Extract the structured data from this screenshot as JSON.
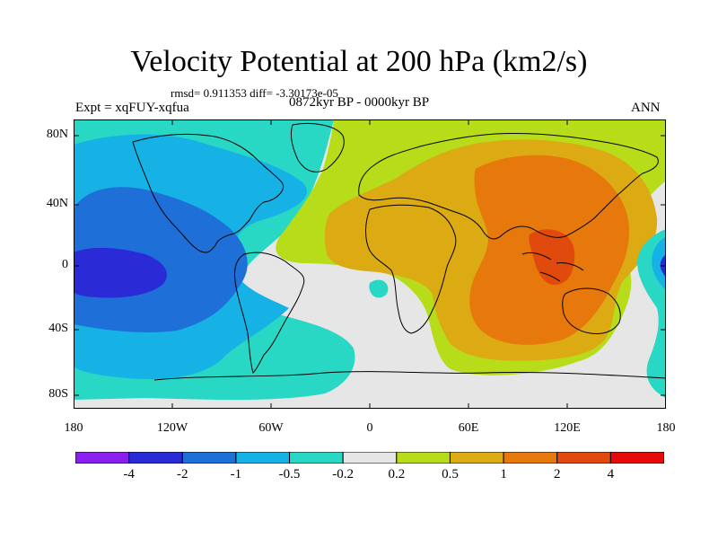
{
  "title": "Velocity Potential at 200 hPa (km2/s)",
  "stats_text": "rmsd= 0.911353 diff= -3.30173e-05",
  "experiment": "Expt = xqFUY-xqfua",
  "period": "0872kyr BP - 0000kyr BP",
  "season": "ANN",
  "y_axis_labels": [
    "80N",
    "40N",
    "0",
    "40S",
    "80S"
  ],
  "x_axis_labels": [
    "180",
    "120W",
    "60W",
    "0",
    "60E",
    "120E",
    "180"
  ],
  "colorbar": {
    "levels": [
      "-4",
      "-2",
      "-1",
      "-0.5",
      "-0.2",
      "0.2",
      "0.5",
      "1",
      "2",
      "4"
    ],
    "colors": [
      "#8a1ff0",
      "#2a2ad6",
      "#1e6fd8",
      "#16b2e6",
      "#28d8c4",
      "#e6e6e6",
      "#b6dc1a",
      "#dcaa12",
      "#e6780c",
      "#e04a0c",
      "#e60a0a"
    ]
  },
  "palette": {
    "ocean_bg": "#e6e6e6",
    "cyan": "#28d8c4",
    "lightblue": "#16b2e6",
    "blue": "#1e6fd8",
    "darkblue": "#2a2ad6",
    "yellowgreen": "#b6dc1a",
    "gold": "#dcaa12",
    "orange": "#e6780c",
    "redorange": "#e04a0c"
  }
}
